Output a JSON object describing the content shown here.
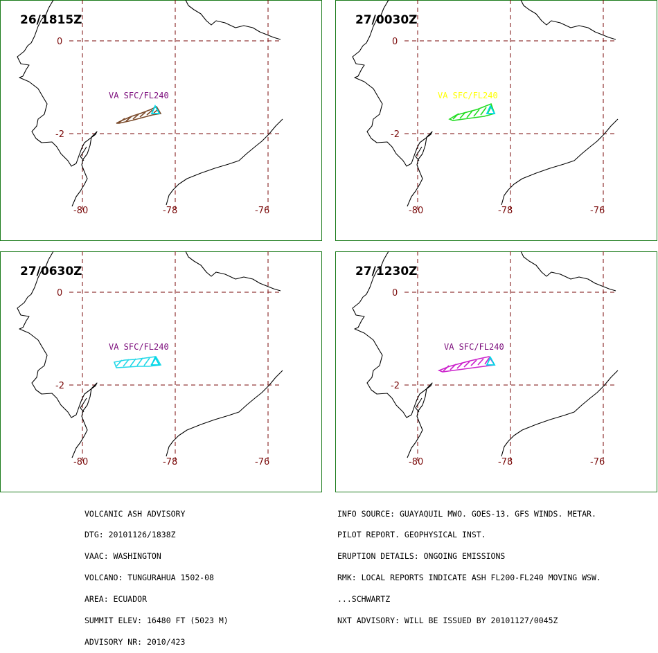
{
  "colors": {
    "frame": "#1a7a1a",
    "grid": "#7a0a0a",
    "coastline": "#000000",
    "volcano_marker": "#00d8e8"
  },
  "map": {
    "latitude_labels": [
      "0",
      "-2"
    ],
    "longitude_labels": [
      "-80",
      "-78",
      "-76"
    ]
  },
  "panels": [
    {
      "time": "26/1815Z",
      "ash_label": "VA SFC/FL240",
      "label_color": "#7a0a7a",
      "ash_color": "#7a4a2a",
      "icon": "volcano-triangle-icon"
    },
    {
      "time": "27/0030Z",
      "ash_label": "VA SFC/FL240",
      "label_color": "#ffff00",
      "ash_color": "#22dd22",
      "icon": "volcano-triangle-icon"
    },
    {
      "time": "27/0630Z",
      "ash_label": "VA SFC/FL240",
      "label_color": "#7a0a7a",
      "ash_color": "#22d8e8",
      "icon": "volcano-triangle-icon"
    },
    {
      "time": "27/1230Z",
      "ash_label": "VA SFC/FL240",
      "label_color": "#7a0a7a",
      "ash_color": "#cc22cc",
      "icon": "volcano-triangle-icon"
    }
  ],
  "advisory": {
    "left_lines": [
      "VOLCANIC ASH ADVISORY",
      "DTG: 20101126/1838Z",
      "VAAC: WASHINGTON",
      "VOLCANO: TUNGURAHUA 1502-08",
      "AREA: ECUADOR",
      "SUMMIT ELEV: 16480 FT (5023 M)",
      "ADVISORY NR: 2010/423"
    ],
    "right_lines": [
      "INFO SOURCE: GUAYAQUIL MWO. GOES-13. GFS WINDS. METAR.",
      "PILOT REPORT. GEOPHYSICAL INST.",
      "ERUPTION DETAILS: ONGOING EMISSIONS",
      "RMK: LOCAL REPORTS INDICATE ASH FL200-FL240 MOVING WSW.",
      "...SCHWARTZ",
      "NXT ADVISORY: WILL BE ISSUED BY 20101127/0045Z"
    ]
  }
}
